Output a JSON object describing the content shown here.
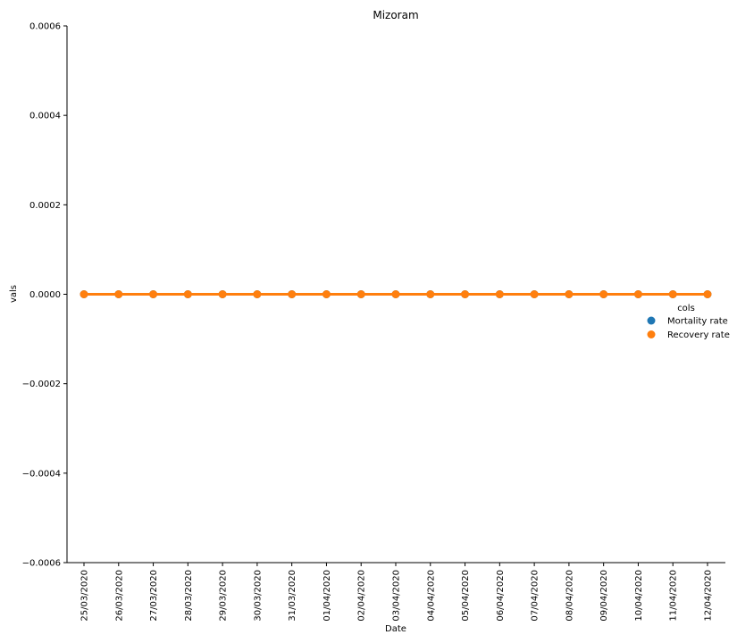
{
  "chart_data": {
    "type": "line",
    "title": "Mizoram",
    "xlabel": "Date",
    "ylabel": "vals",
    "categories": [
      "25/03/2020",
      "26/03/2020",
      "27/03/2020",
      "28/03/2020",
      "29/03/2020",
      "30/03/2020",
      "31/03/2020",
      "01/04/2020",
      "02/04/2020",
      "03/04/2020",
      "04/04/2020",
      "05/04/2020",
      "06/04/2020",
      "07/04/2020",
      "08/04/2020",
      "09/04/2020",
      "10/04/2020",
      "11/04/2020",
      "12/04/2020"
    ],
    "ylim": [
      -0.0006,
      0.0006
    ],
    "yticks": [
      -0.0006,
      -0.0004,
      -0.0002,
      0.0,
      0.0002,
      0.0004,
      0.0006
    ],
    "ytick_labels": [
      "−0.0006",
      "−0.0004",
      "−0.0002",
      "0.0000",
      "0.0002",
      "0.0004",
      "0.0006"
    ],
    "grid": false,
    "legend": {
      "title": "cols",
      "placement": "right"
    },
    "series": [
      {
        "name": "Mortality rate",
        "color": "#1f77b4",
        "values": [
          0,
          0,
          0,
          0,
          0,
          0,
          0,
          0,
          0,
          0,
          0,
          0,
          0,
          0,
          0,
          0,
          0,
          0,
          0
        ]
      },
      {
        "name": "Recovery rate",
        "color": "#ff7f0e",
        "values": [
          0,
          0,
          0,
          0,
          0,
          0,
          0,
          0,
          0,
          0,
          0,
          0,
          0,
          0,
          0,
          0,
          0,
          0,
          0
        ]
      }
    ]
  }
}
